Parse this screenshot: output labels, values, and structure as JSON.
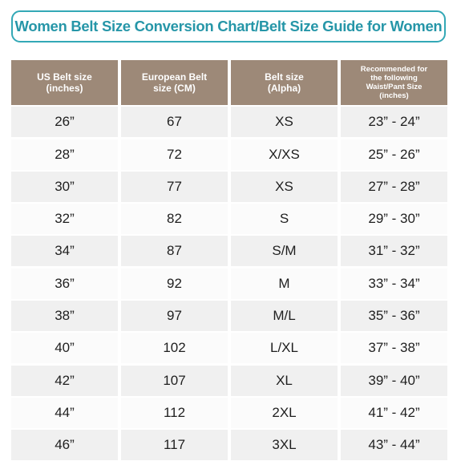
{
  "title": "Women Belt Size Conversion Chart/Belt Size Guide for Women",
  "table": {
    "headers": [
      "US Belt size (inches)",
      "European Belt size (CM)",
      "Belt size (Alpha)",
      "Recommended for the following Waist/Pant Size (inches)"
    ],
    "rows": [
      [
        "26”",
        "67",
        "XS",
        "23” - 24”"
      ],
      [
        "28”",
        "72",
        "X/XS",
        "25” - 26”"
      ],
      [
        "30”",
        "77",
        "XS",
        "27” - 28”"
      ],
      [
        "32”",
        "82",
        "S",
        "29” - 30”"
      ],
      [
        "34”",
        "87",
        "S/M",
        "31” - 32”"
      ],
      [
        "36”",
        "92",
        "M",
        "33” - 34”"
      ],
      [
        "38”",
        "97",
        "M/L",
        "35” - 36”"
      ],
      [
        "40”",
        "102",
        "L/XL",
        "37” - 38”"
      ],
      [
        "42”",
        "107",
        "XL",
        "39” - 40”"
      ],
      [
        "44”",
        "112",
        "2XL",
        "41” - 42”"
      ],
      [
        "46”",
        "117",
        "3XL",
        "43” - 44”"
      ]
    ]
  },
  "colors": {
    "title_text": "#2696a8",
    "title_border": "#33a8b6",
    "header_bg": "#9d8978",
    "row_odd": "#f0f0f0",
    "row_even": "#fbfbfb"
  }
}
